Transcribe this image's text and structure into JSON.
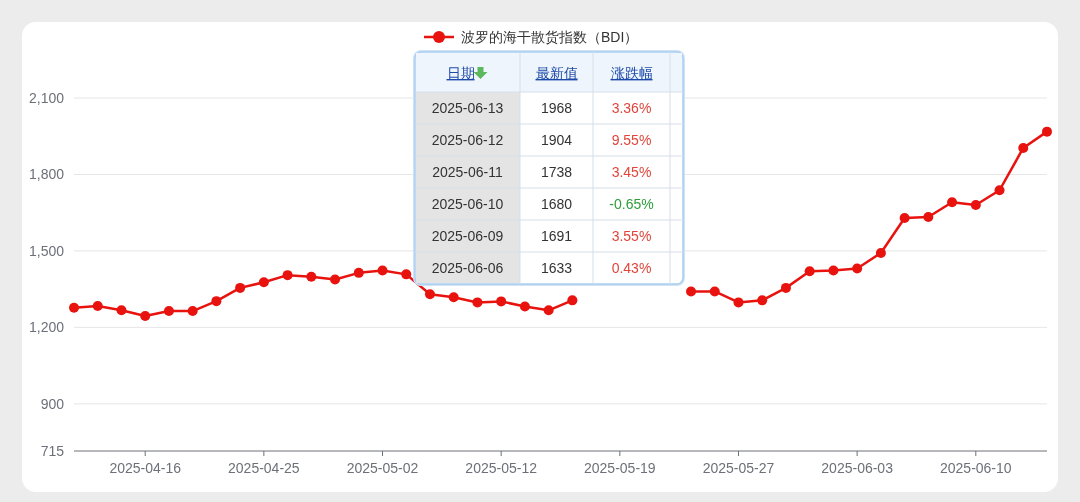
{
  "chart_data": [
    {
      "type": "line",
      "legend": "top",
      "categories": [
        null,
        null,
        null,
        "2025-04-16",
        null,
        null,
        null,
        null,
        "2025-04-25",
        null,
        null,
        null,
        null,
        "2025-05-02",
        null,
        null,
        null,
        null,
        "2025-05-12",
        null,
        null,
        null,
        null,
        "2025-05-19",
        null,
        null,
        null,
        null,
        "2025-05-27",
        null,
        null,
        null,
        null,
        "2025-06-03",
        null,
        null,
        null,
        null,
        "2025-06-10",
        null,
        null,
        null
      ],
      "series": [
        {
          "name": "波罗的海干散货指数（BDI）",
          "color": "#e8130f",
          "values": [
            1277,
            1284,
            1267,
            1245,
            1264,
            1264,
            1303,
            1355,
            1377,
            1405,
            1399,
            1388,
            1414,
            1423,
            1408,
            1330,
            1318,
            1298,
            1302,
            1282,
            1267,
            1306,
            null,
            null,
            null,
            null,
            1341,
            1341,
            1298,
            1306,
            1355,
            1420,
            1423,
            1431,
            1492,
            1629,
            1633,
            1691,
            1680,
            1738,
            1904,
            1968
          ]
        }
      ],
      "marker": "circle",
      "line_style": "solid",
      "grid": "y",
      "ylim": [
        715,
        2100
      ],
      "yticks": [
        715,
        900,
        {
          "value": 1200,
          "label": "1,200"
        },
        {
          "value": 1500,
          "label": "1,500"
        },
        {
          "value": 1800,
          "label": "1,800"
        },
        {
          "value": 2100,
          "label": "2,100"
        }
      ]
    },
    {
      "type": "other",
      "categories": [
        "日期",
        "最新值",
        "涨跌幅"
      ],
      "cell_labels": [
        [
          "2025-06-13",
          "1968",
          "3.36%"
        ],
        [
          "2025-06-12",
          "1904",
          "9.55%"
        ],
        [
          "2025-06-11",
          "1738",
          "3.45%"
        ],
        [
          "2025-06-10",
          "1680",
          "-0.65%"
        ],
        [
          "2025-06-09",
          "1691",
          "3.55%"
        ],
        [
          "2025-06-06",
          "1633",
          "0.43%"
        ]
      ]
    }
  ]
}
